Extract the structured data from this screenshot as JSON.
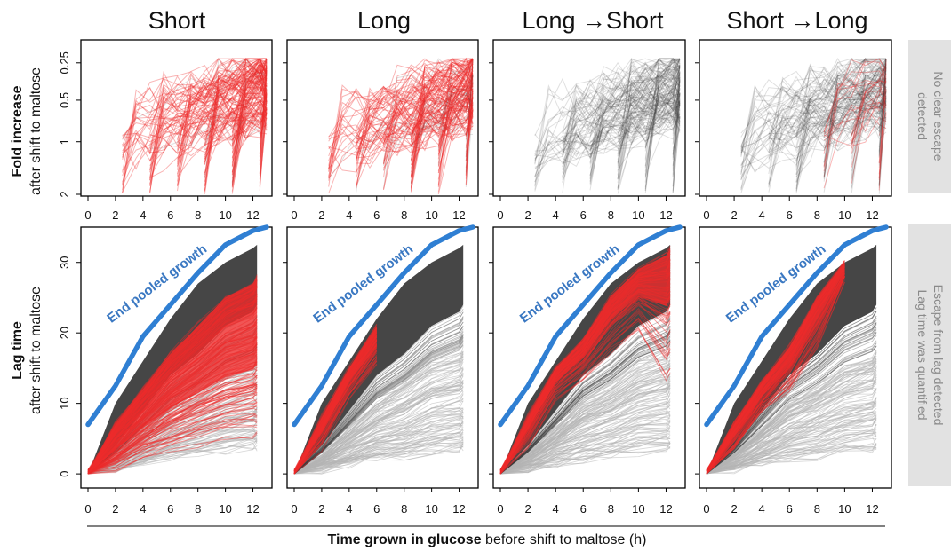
{
  "figure": {
    "x_label_bold": "Time grown in glucose",
    "x_label_rest": " before shift to maltose (h)",
    "top_ylabel_bold": "Fold increase",
    "top_ylabel_sub": "after shift to maltose",
    "bottom_ylabel_bold": "Lag time",
    "bottom_ylabel_sub": "after shift to maltose",
    "top_side_lines": [
      "No clear escape",
      "detected"
    ],
    "bottom_side_lines": [
      "Escape from lag detected",
      "Lag time was quantified"
    ],
    "annotation": "End pooled growth"
  },
  "colors": {
    "gray": "#3c3c3c",
    "light_gray": "#b4b4b4",
    "red": "#ee2a2a",
    "blue": "#2f7fd3",
    "annotation": "#3a78c2",
    "side_panel": "#e2e2e2"
  },
  "chart_data": {
    "type": "line",
    "panels": [
      "Short",
      "Long",
      "Long →Short",
      "Short →Long"
    ],
    "x_ticks": [
      0,
      2,
      4,
      6,
      8,
      10,
      12
    ],
    "x_range": [
      0,
      13
    ],
    "top": {
      "ylabel": "Fold increase after shift to maltose",
      "y_tick_labels": [
        "2",
        "1",
        "0.5",
        "0.25"
      ],
      "red_end_hours": [
        13,
        13,
        0,
        13
      ],
      "red_start_hours": [
        2.5,
        2.5,
        0,
        8.5
      ]
    },
    "bottom": {
      "ylabel": "Lag time after shift to maltose",
      "y_ticks": [
        0,
        10,
        20,
        30
      ],
      "ylim": [
        -2,
        35
      ],
      "end_pooled_growth": {
        "x": [
          0,
          2,
          4,
          6,
          8,
          10,
          12,
          13
        ],
        "y": [
          7,
          12.5,
          19.5,
          24,
          28.5,
          32.5,
          34.5,
          35
        ]
      },
      "gray_band_upper": {
        "x": [
          0,
          2,
          4,
          6,
          8,
          10,
          12,
          12.3
        ],
        "y": [
          0,
          10,
          16,
          22,
          27,
          30,
          32,
          32.5
        ]
      },
      "gray_band_lower": {
        "x": [
          0,
          2,
          4,
          6,
          8,
          10,
          12,
          12.3
        ],
        "y": [
          0,
          4,
          9,
          14,
          17,
          21,
          23,
          24
        ]
      },
      "red_end_hours": [
        12.3,
        6,
        12.3,
        10
      ],
      "red_band_upper": [
        {
          "x": [
            0,
            2,
            4,
            6,
            8,
            10,
            12,
            12.3
          ],
          "y": [
            0,
            7,
            12,
            17,
            21,
            25,
            27,
            28
          ]
        },
        {
          "x": [
            0,
            2,
            4,
            6
          ],
          "y": [
            0,
            8,
            15,
            21
          ]
        },
        {
          "x": [
            0,
            2,
            4,
            6,
            8,
            10,
            12,
            12.3
          ],
          "y": [
            0,
            8,
            15,
            19,
            25,
            29,
            31,
            32
          ]
        },
        {
          "x": [
            0,
            2,
            4,
            6,
            8,
            10
          ],
          "y": [
            0,
            7,
            13,
            18,
            25,
            30
          ]
        }
      ],
      "red_band_lower": [
        {
          "x": [
            0,
            2,
            4,
            6,
            8,
            10,
            12,
            12.3
          ],
          "y": [
            0,
            0.5,
            2,
            3,
            4,
            4.5,
            5,
            5
          ]
        },
        {
          "x": [
            0,
            2,
            4,
            6
          ],
          "y": [
            0,
            3,
            10,
            14
          ]
        },
        {
          "x": [
            0,
            2,
            4,
            6,
            8,
            10,
            12,
            12.3
          ],
          "y": [
            0,
            4,
            10,
            13,
            17,
            20,
            13,
            14
          ]
        },
        {
          "x": [
            0,
            2,
            4,
            6,
            8,
            10
          ],
          "y": [
            0,
            3,
            8,
            11,
            17,
            27
          ]
        }
      ]
    }
  }
}
